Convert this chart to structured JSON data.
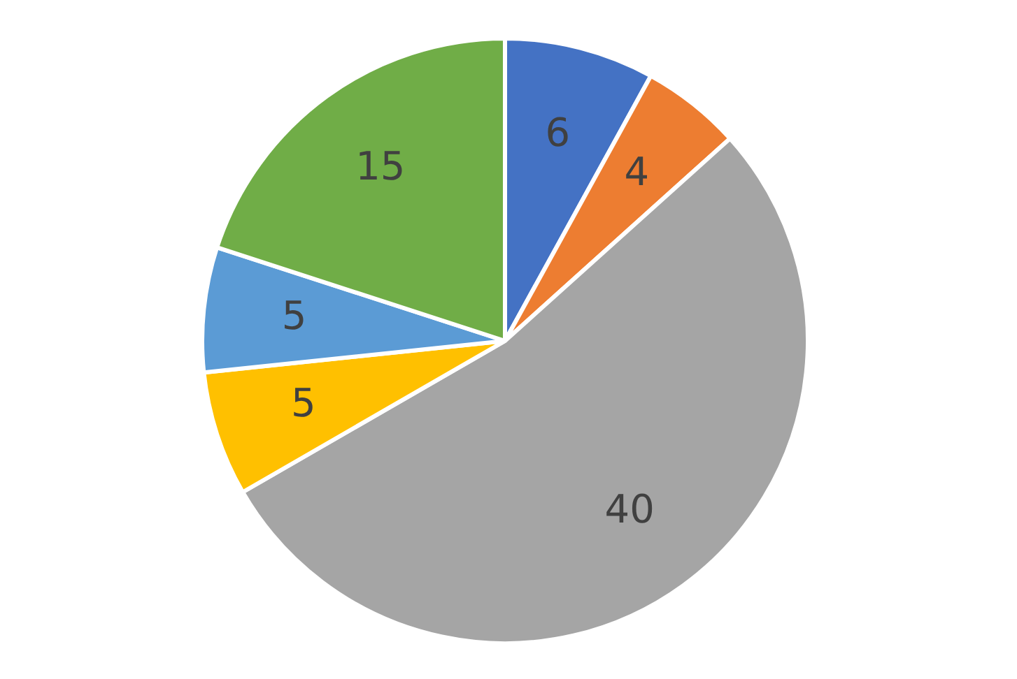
{
  "chart_data": {
    "type": "pie",
    "categories": [
      null,
      null,
      null,
      null,
      null,
      null
    ],
    "values": [
      6,
      4,
      40,
      5,
      5,
      15
    ],
    "colors": [
      "#4472c4",
      "#ed7d31",
      "#a5a5a5",
      "#ffc000",
      "#5b9bd5",
      "#70ad47"
    ],
    "data_labels": true,
    "legend": false
  }
}
